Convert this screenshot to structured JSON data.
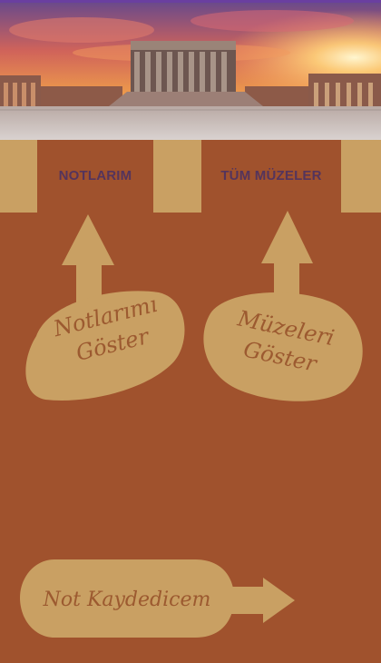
{
  "hero": {
    "alt_name": "Anıtkabir",
    "image": "mausoleum-sunset"
  },
  "tabs": [
    {
      "label": "NOTLARIM"
    },
    {
      "label": "TÜM MÜZELER"
    }
  ],
  "hints": {
    "notes": {
      "line1": "Notlarımı",
      "line2": "Göster"
    },
    "museums": {
      "line1": "Müzeleri",
      "line2": "Göster"
    },
    "save_note": {
      "label": "Not Kaydedicem"
    }
  },
  "colors": {
    "background": "#a0522d",
    "accent": "#c9a063",
    "tab_text": "#54345c",
    "bubble_text": "#9c5a30"
  },
  "icons": [
    "arrow-up-icon",
    "arrow-right-icon"
  ]
}
